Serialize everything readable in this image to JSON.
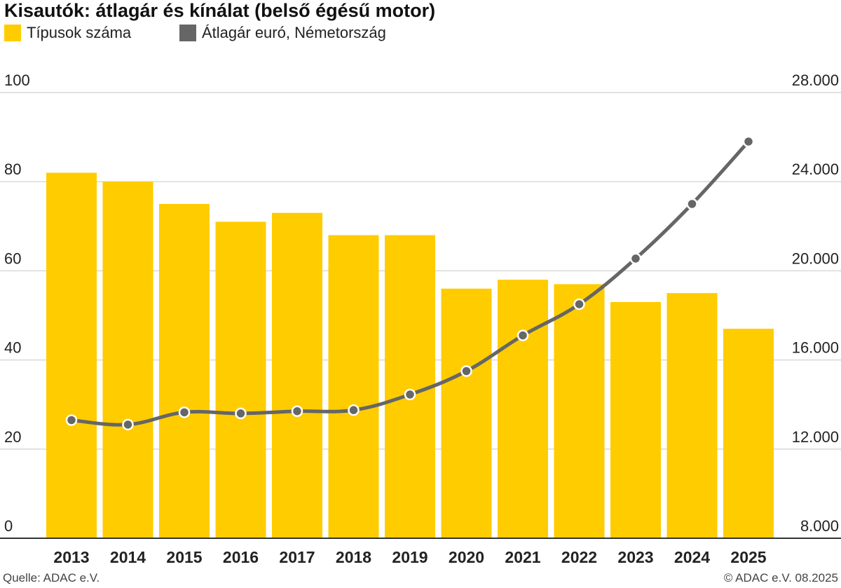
{
  "chart_data": {
    "type": "bar",
    "title": "Kisautók: átlagár és kínálat (belső égésű motor)",
    "categories": [
      "2013",
      "2014",
      "2015",
      "2016",
      "2017",
      "2018",
      "2019",
      "2020",
      "2021",
      "2022",
      "2023",
      "2024",
      "2025"
    ],
    "series": [
      {
        "name": "Típusok száma",
        "type": "bar",
        "axis": "left",
        "color": "#FFCC00",
        "values": [
          82,
          80,
          75,
          71,
          73,
          68,
          68,
          56,
          58,
          57,
          53,
          55,
          47
        ]
      },
      {
        "name": "Átlagár euró, Németország",
        "type": "line",
        "axis": "right",
        "color": "#666666",
        "values": [
          13300,
          13100,
          13650,
          13600,
          13700,
          13750,
          14450,
          15500,
          17100,
          18500,
          20550,
          23000,
          25800
        ]
      }
    ],
    "y_left": {
      "min": 0,
      "max": 100,
      "ticks": [
        0,
        20,
        40,
        60,
        80,
        100
      ],
      "tick_labels": [
        "0",
        "20",
        "40",
        "60",
        "80",
        "100"
      ]
    },
    "y_right": {
      "min": 8000,
      "max": 28000,
      "ticks": [
        8000,
        12000,
        16000,
        20000,
        24000,
        28000
      ],
      "tick_labels": [
        "8.000",
        "12.000",
        "16.000",
        "20.000",
        "24.000",
        "28.000"
      ]
    },
    "grid": true,
    "legend": "top-left"
  },
  "footer": {
    "source": "Quelle: ADAC e.V.",
    "copyright": "© ADAC e.V. 08.2025"
  }
}
